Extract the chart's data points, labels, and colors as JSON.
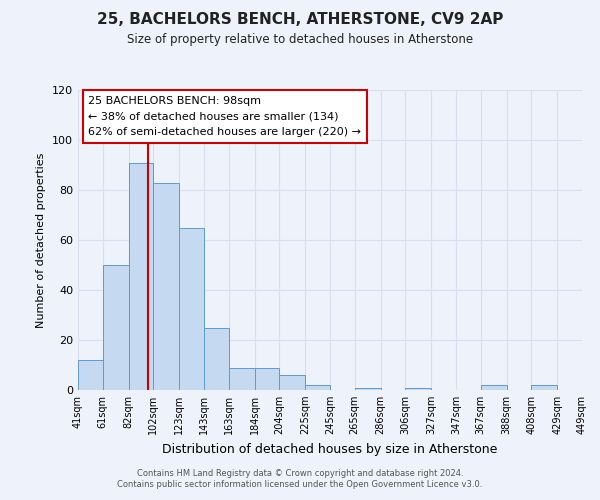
{
  "title": "25, BACHELORS BENCH, ATHERSTONE, CV9 2AP",
  "subtitle": "Size of property relative to detached houses in Atherstone",
  "xlabel": "Distribution of detached houses by size in Atherstone",
  "ylabel": "Number of detached properties",
  "bar_left_edges": [
    41,
    61,
    82,
    102,
    123,
    143,
    163,
    184,
    204,
    225,
    245,
    265,
    286,
    306,
    327,
    347,
    367,
    388,
    408,
    429
  ],
  "bar_widths": [
    20,
    21,
    20,
    21,
    20,
    20,
    21,
    20,
    21,
    20,
    20,
    21,
    20,
    21,
    20,
    20,
    21,
    20,
    21,
    20
  ],
  "bar_heights": [
    12,
    50,
    91,
    83,
    65,
    25,
    9,
    9,
    6,
    2,
    0,
    1,
    0,
    1,
    0,
    0,
    2,
    0,
    2,
    0
  ],
  "tick_labels": [
    "41sqm",
    "61sqm",
    "82sqm",
    "102sqm",
    "123sqm",
    "143sqm",
    "163sqm",
    "184sqm",
    "204sqm",
    "225sqm",
    "245sqm",
    "265sqm",
    "286sqm",
    "306sqm",
    "327sqm",
    "347sqm",
    "367sqm",
    "388sqm",
    "408sqm",
    "429sqm",
    "449sqm"
  ],
  "tick_positions": [
    41,
    61,
    82,
    102,
    123,
    143,
    163,
    184,
    204,
    225,
    245,
    265,
    286,
    306,
    327,
    347,
    367,
    388,
    408,
    429,
    449
  ],
  "bar_color": "#c5d9f1",
  "bar_edge_color": "#5b9bd5",
  "vline_x": 98,
  "vline_color": "#cc0000",
  "ylim": [
    0,
    120
  ],
  "yticks": [
    0,
    20,
    40,
    60,
    80,
    100,
    120
  ],
  "annotation_title": "25 BACHELORS BENCH: 98sqm",
  "annotation_line1": "← 38% of detached houses are smaller (134)",
  "annotation_line2": "62% of semi-detached houses are larger (220) →",
  "annotation_box_color": "#ffffff",
  "annotation_border_color": "#cc0000",
  "footer_line1": "Contains HM Land Registry data © Crown copyright and database right 2024.",
  "footer_line2": "Contains public sector information licensed under the Open Government Licence v3.0.",
  "background_color": "#eef2fb",
  "grid_color": "#d8dff0"
}
